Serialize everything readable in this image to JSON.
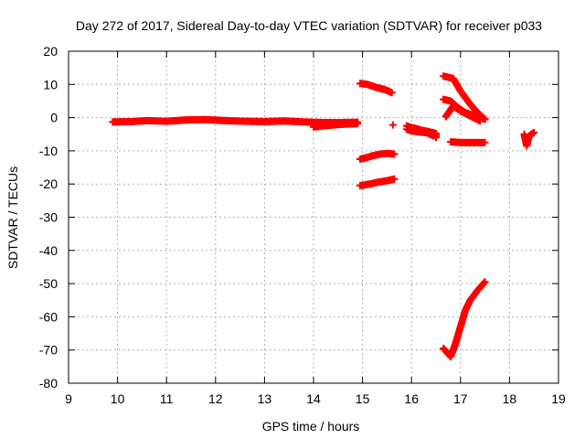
{
  "chart_data": {
    "type": "scatter",
    "title": "Day 272 of 2017, Sidereal Day-to-day VTEC variation (SDTVAR) for receiver p033",
    "xlabel": "GPS time / hours",
    "ylabel": "SDTVAR / TECUs",
    "xlim": [
      9,
      19
    ],
    "ylim": [
      -80,
      20
    ],
    "xticks": [
      9,
      10,
      11,
      12,
      13,
      14,
      15,
      16,
      17,
      18,
      19
    ],
    "yticks": [
      20,
      10,
      0,
      -10,
      -20,
      -30,
      -40,
      -50,
      -60,
      -70,
      -80
    ],
    "grid": true,
    "marker": "+",
    "marker_color": "#ff0000",
    "segments": [
      {
        "points": [
          [
            9.9,
            -1.3
          ],
          [
            10.3,
            -1.2
          ],
          [
            10.6,
            -0.9
          ],
          [
            11.0,
            -1.1
          ],
          [
            11.4,
            -0.7
          ],
          [
            11.8,
            -0.6
          ],
          [
            12.2,
            -0.9
          ],
          [
            12.6,
            -1.1
          ],
          [
            13.0,
            -1.2
          ],
          [
            13.4,
            -1.0
          ],
          [
            13.8,
            -1.3
          ],
          [
            14.2,
            -1.5
          ],
          [
            14.5,
            -1.5
          ],
          [
            14.9,
            -1.4
          ]
        ]
      },
      {
        "points": [
          [
            14.0,
            -2.8
          ],
          [
            14.2,
            -2.5
          ],
          [
            14.4,
            -2.2
          ],
          [
            14.6,
            -2.0
          ],
          [
            14.9,
            -1.8
          ]
        ]
      },
      {
        "points": [
          [
            14.95,
            10.3
          ],
          [
            15.1,
            10.0
          ],
          [
            15.2,
            9.5
          ],
          [
            15.3,
            9.0
          ],
          [
            15.45,
            8.5
          ],
          [
            15.6,
            7.5
          ]
        ]
      },
      {
        "points": [
          [
            14.95,
            -12.5
          ],
          [
            15.1,
            -12.0
          ],
          [
            15.2,
            -11.5
          ],
          [
            15.35,
            -11.0
          ],
          [
            15.5,
            -10.8
          ],
          [
            15.65,
            -11.0
          ]
        ]
      },
      {
        "points": [
          [
            14.95,
            -20.5
          ],
          [
            15.15,
            -20.0
          ],
          [
            15.3,
            -19.5
          ],
          [
            15.5,
            -19.0
          ],
          [
            15.65,
            -18.5
          ]
        ]
      },
      {
        "points": [
          [
            15.62,
            -2.2
          ]
        ]
      },
      {
        "points": [
          [
            15.9,
            -2.5
          ],
          [
            16.0,
            -3.0
          ],
          [
            16.1,
            -3.3
          ],
          [
            16.2,
            -3.8
          ],
          [
            16.35,
            -4.2
          ],
          [
            16.5,
            -4.8
          ],
          [
            16.5,
            -6.0
          ]
        ]
      },
      {
        "points": [
          [
            15.9,
            -3.5
          ],
          [
            16.0,
            -4.0
          ],
          [
            16.15,
            -4.3
          ],
          [
            16.3,
            -4.5
          ],
          [
            16.45,
            -5.5
          ]
        ]
      },
      {
        "points": [
          [
            16.65,
            12.5
          ],
          [
            16.85,
            11.8
          ],
          [
            17.0,
            8.0
          ],
          [
            17.2,
            4.0
          ],
          [
            17.35,
            1.5
          ],
          [
            17.5,
            -0.5
          ]
        ]
      },
      {
        "points": [
          [
            16.65,
            5.5
          ],
          [
            16.8,
            5.0
          ],
          [
            16.95,
            3.0
          ],
          [
            17.1,
            1.5
          ],
          [
            17.3,
            0.5
          ],
          [
            17.5,
            -0.5
          ]
        ]
      },
      {
        "points": [
          [
            16.7,
            0.3
          ],
          [
            16.85,
            3.5
          ],
          [
            17.0,
            2.0
          ],
          [
            17.2,
            0.5
          ],
          [
            17.4,
            -1.0
          ]
        ]
      },
      {
        "points": [
          [
            16.8,
            -7.3
          ],
          [
            17.0,
            -7.5
          ],
          [
            17.2,
            -7.5
          ],
          [
            17.4,
            -7.5
          ],
          [
            17.5,
            -7.5
          ]
        ]
      },
      {
        "points": [
          [
            16.65,
            -69.5
          ],
          [
            16.8,
            -72.0
          ],
          [
            16.9,
            -68.0
          ],
          [
            17.0,
            -63.0
          ],
          [
            17.1,
            -58.0
          ],
          [
            17.2,
            -55.0
          ],
          [
            17.35,
            -52.0
          ],
          [
            17.5,
            -49.5
          ]
        ]
      },
      {
        "points": [
          [
            18.3,
            -5.0
          ],
          [
            18.35,
            -8.5
          ],
          [
            18.4,
            -5.5
          ],
          [
            18.5,
            -4.5
          ]
        ]
      }
    ]
  }
}
